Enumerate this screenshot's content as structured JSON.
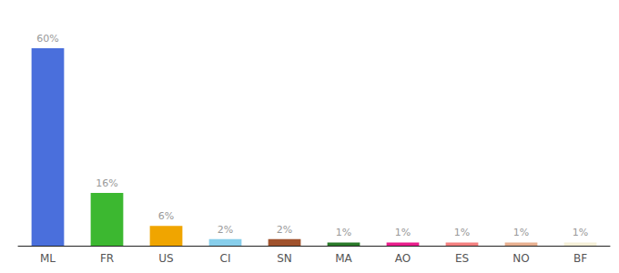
{
  "chart_data": {
    "type": "bar",
    "categories": [
      "ML",
      "FR",
      "US",
      "CI",
      "SN",
      "MA",
      "AO",
      "ES",
      "NO",
      "BF"
    ],
    "values": [
      60,
      16,
      6,
      2,
      2,
      1,
      1,
      1,
      1,
      1
    ],
    "value_labels": [
      "60%",
      "16%",
      "6%",
      "2%",
      "2%",
      "1%",
      "1%",
      "1%",
      "1%",
      "1%"
    ],
    "colors": [
      "#4a6fdc",
      "#3cb830",
      "#f0a500",
      "#87ceeb",
      "#a0522d",
      "#2a7a2a",
      "#e91e8c",
      "#f48080",
      "#e8b090",
      "#f5f0d8"
    ],
    "ylim": [
      0,
      68
    ],
    "grid": false,
    "data_labels": true,
    "tick_labels": "x"
  }
}
